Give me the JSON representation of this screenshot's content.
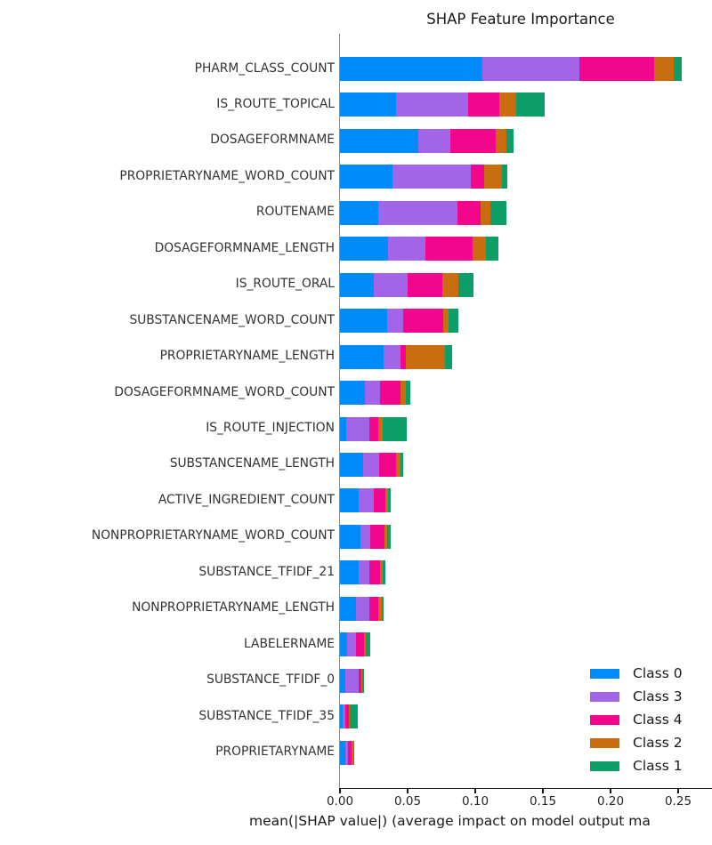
{
  "title": "SHAP Feature Importance",
  "xlabel_visible": "mean(|SHAP value|) (average impact on model output ma",
  "axis": {
    "tick_labels": [
      "0.00",
      "0.05",
      "0.10",
      "0.15",
      "0.20",
      "0.25"
    ],
    "tick_values": [
      0.0,
      0.05,
      0.1,
      0.15,
      0.2,
      0.25
    ]
  },
  "legend": {
    "position": "lower right",
    "entries": [
      {
        "label": "Class 0",
        "color": "#008bfb"
      },
      {
        "label": "Class 3",
        "color": "#a365e8"
      },
      {
        "label": "Class 4",
        "color": "#f2068c"
      },
      {
        "label": "Class 2",
        "color": "#c96d10"
      },
      {
        "label": "Class 1",
        "color": "#0d9e67"
      }
    ]
  },
  "chart_data": {
    "type": "bar",
    "orientation": "horizontal",
    "stacked": true,
    "title": "SHAP Feature Importance",
    "xlabel": "mean(|SHAP value|) (average impact on model output ma",
    "ylabel": "",
    "xlim": [
      0,
      0.275
    ],
    "grid": false,
    "legend_position": "lower right",
    "categories": [
      "PHARM_CLASS_COUNT",
      "IS_ROUTE_TOPICAL",
      "DOSAGEFORMNAME",
      "PROPRIETARYNAME_WORD_COUNT",
      "ROUTENAME",
      "DOSAGEFORMNAME_LENGTH",
      "IS_ROUTE_ORAL",
      "SUBSTANCENAME_WORD_COUNT",
      "PROPRIETARYNAME_LENGTH",
      "DOSAGEFORMNAME_WORD_COUNT",
      "IS_ROUTE_INJECTION",
      "SUBSTANCENAME_LENGTH",
      "ACTIVE_INGREDIENT_COUNT",
      "NONPROPRIETARYNAME_WORD_COUNT",
      "SUBSTANCE_TFIDF_21",
      "NONPROPRIETARYNAME_LENGTH",
      "LABELERNAME",
      "SUBSTANCE_TFIDF_0",
      "SUBSTANCE_TFIDF_35",
      "PROPRIETARYNAME"
    ],
    "series": [
      {
        "name": "Class 0",
        "color": "#008bfb",
        "values": [
          0.105,
          0.0415,
          0.058,
          0.039,
          0.0285,
          0.0357,
          0.0248,
          0.0347,
          0.0322,
          0.0186,
          0.0044,
          0.0169,
          0.0138,
          0.0149,
          0.0136,
          0.0116,
          0.005,
          0.0039,
          0.0022,
          0.0037
        ]
      },
      {
        "name": "Class 3",
        "color": "#a365e8",
        "values": [
          0.072,
          0.0535,
          0.0235,
          0.058,
          0.0585,
          0.0274,
          0.0252,
          0.0118,
          0.0123,
          0.011,
          0.0171,
          0.0121,
          0.011,
          0.0075,
          0.0079,
          0.0099,
          0.007,
          0.0099,
          0.0018,
          0.002
        ]
      },
      {
        "name": "Class 4",
        "color": "#f2068c",
        "values": [
          0.055,
          0.023,
          0.0335,
          0.0094,
          0.017,
          0.0349,
          0.0256,
          0.0296,
          0.0044,
          0.0153,
          0.0066,
          0.0123,
          0.0086,
          0.0105,
          0.0081,
          0.0066,
          0.0061,
          0.002,
          0.0026,
          0.0031
        ]
      },
      {
        "name": "Class 2",
        "color": "#c96d10",
        "values": [
          0.0145,
          0.012,
          0.008,
          0.0136,
          0.0072,
          0.0101,
          0.012,
          0.004,
          0.0289,
          0.004,
          0.0037,
          0.0033,
          0.0024,
          0.0018,
          0.0018,
          0.0026,
          0.001,
          0.0005,
          0.0009,
          0.0011
        ]
      },
      {
        "name": "Class 1",
        "color": "#0d9e67",
        "values": [
          0.006,
          0.0215,
          0.0055,
          0.0035,
          0.012,
          0.0088,
          0.0114,
          0.0077,
          0.005,
          0.0033,
          0.0175,
          0.0022,
          0.002,
          0.0026,
          0.0022,
          0.0015,
          0.0033,
          0.0017,
          0.0055,
          0.0007
        ]
      }
    ]
  }
}
